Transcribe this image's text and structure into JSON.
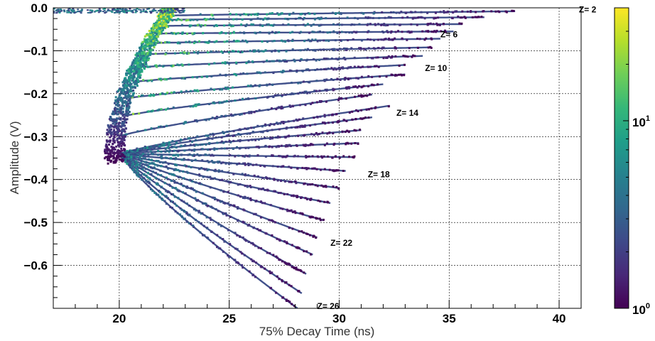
{
  "chart_data": {
    "type": "heatmap",
    "xlabel": "75% Decay Time (ns)",
    "ylabel": "Amplitude (V)",
    "xlim": [
      17,
      41
    ],
    "ylim": [
      -0.7,
      0.0
    ],
    "x_ticks": [
      20,
      25,
      30,
      35,
      40
    ],
    "y_ticks": [
      0.0,
      -0.1,
      -0.2,
      -0.3,
      -0.4,
      -0.5,
      -0.6
    ],
    "x_tick_labels": [
      "20",
      "25",
      "30",
      "35",
      "40"
    ],
    "y_tick_labels": [
      "0.0",
      "−0.1",
      "−0.2",
      "−0.3",
      "−0.4",
      "−0.5",
      "−0.6"
    ],
    "grid": true,
    "colorbar": {
      "scale": "log",
      "range": [
        1,
        40
      ],
      "tick_labels": [
        {
          "base": "10",
          "exp": "0",
          "value": 1
        },
        {
          "base": "10",
          "exp": "1",
          "value": 10
        }
      ],
      "colormap": [
        "#440154",
        "#482878",
        "#3e4989",
        "#31688e",
        "#26828e",
        "#1f9e89",
        "#35b779",
        "#6ece58",
        "#b5de2b",
        "#fde725"
      ]
    },
    "z_labels": [
      {
        "text": "Z= 2",
        "z": 2,
        "x": 40.9,
        "y": -0.004
      },
      {
        "text": "Z= 6",
        "z": 6,
        "x": 34.6,
        "y": -0.062
      },
      {
        "text": "Z= 10",
        "z": 10,
        "x": 33.9,
        "y": -0.141
      },
      {
        "text": "Z= 14",
        "z": 14,
        "x": 32.6,
        "y": -0.245
      },
      {
        "text": "Z= 18",
        "z": 18,
        "x": 31.3,
        "y": -0.388
      },
      {
        "text": "Z= 22",
        "z": 22,
        "x": 29.6,
        "y": -0.548
      },
      {
        "text": "Z= 26",
        "z": 26,
        "x": 29.0,
        "y": -0.695
      }
    ],
    "bands": [
      {
        "z": 2,
        "end_x": 38.0,
        "end_y": -0.008
      },
      {
        "z": 3,
        "end_x": 36.6,
        "end_y": -0.022
      },
      {
        "z": 4,
        "end_x": 35.6,
        "end_y": -0.038
      },
      {
        "z": 5,
        "end_x": 35.2,
        "end_y": -0.055
      },
      {
        "z": 6,
        "end_x": 34.6,
        "end_y": -0.072
      },
      {
        "z": 7,
        "end_x": 34.2,
        "end_y": -0.092
      },
      {
        "z": 8,
        "end_x": 33.8,
        "end_y": -0.112
      },
      {
        "z": 9,
        "end_x": 33.0,
        "end_y": -0.133
      },
      {
        "z": 10,
        "end_x": 33.0,
        "end_y": -0.155
      },
      {
        "z": 11,
        "end_x": 32.0,
        "end_y": -0.178
      },
      {
        "z": 12,
        "end_x": 31.5,
        "end_y": -0.202
      },
      {
        "z": 13,
        "end_x": 32.3,
        "end_y": -0.228
      },
      {
        "z": 14,
        "end_x": 31.5,
        "end_y": -0.255
      },
      {
        "z": 15,
        "end_x": 31.0,
        "end_y": -0.285
      },
      {
        "z": 16,
        "end_x": 30.9,
        "end_y": -0.315
      },
      {
        "z": 17,
        "end_x": 30.7,
        "end_y": -0.348
      },
      {
        "z": 18,
        "end_x": 30.3,
        "end_y": -0.38
      },
      {
        "z": 19,
        "end_x": 30.0,
        "end_y": -0.42
      },
      {
        "z": 20,
        "end_x": 29.6,
        "end_y": -0.455
      },
      {
        "z": 21,
        "end_x": 29.3,
        "end_y": -0.495
      },
      {
        "z": 22,
        "end_x": 29.0,
        "end_y": -0.535
      },
      {
        "z": 23,
        "end_x": 28.8,
        "end_y": -0.575
      },
      {
        "z": 24,
        "end_x": 28.5,
        "end_y": -0.62
      },
      {
        "z": 25,
        "end_x": 28.3,
        "end_y": -0.665
      },
      {
        "z": 26,
        "end_x": 28.1,
        "end_y": -0.7
      }
    ]
  }
}
